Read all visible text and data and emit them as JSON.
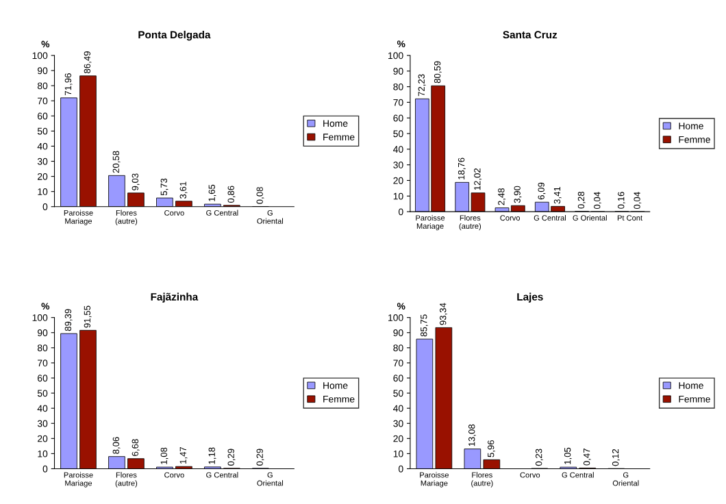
{
  "chart_data": [
    {
      "type": "bar",
      "title": "Ponta Delgada",
      "ylabel": "%",
      "categories": [
        "Paroisse\nMariage",
        "Flores\n(autre)",
        "Corvo",
        "G Central",
        "G\nOriental"
      ],
      "ylim": [
        0,
        100
      ],
      "yticks": [
        0,
        10,
        20,
        30,
        40,
        50,
        60,
        70,
        80,
        90,
        100
      ],
      "grid": false,
      "legend": "right",
      "series": [
        {
          "name": "Home",
          "color": "#9999ff",
          "values": [
            71.96,
            20.58,
            5.73,
            1.65,
            0.08
          ],
          "value_labels": [
            "71,96",
            "20,58",
            "5,73",
            "1,65",
            "0,08"
          ]
        },
        {
          "name": "Femme",
          "color": "#991100",
          "values": [
            86.49,
            9.03,
            3.61,
            0.86,
            null
          ],
          "value_labels": [
            "86,49",
            "9,03",
            "3,61",
            "0,86",
            null
          ]
        }
      ]
    },
    {
      "type": "bar",
      "title": "Santa Cruz",
      "ylabel": "%",
      "categories": [
        "Paroisse\nMariage",
        "Flores\n(autre)",
        "Corvo",
        "G Central",
        "G Oriental",
        "Pt Cont"
      ],
      "ylim": [
        0,
        100
      ],
      "yticks": [
        0,
        10,
        20,
        30,
        40,
        50,
        60,
        70,
        80,
        90,
        100
      ],
      "grid": false,
      "legend": "right",
      "series": [
        {
          "name": "Home",
          "color": "#9999ff",
          "values": [
            72.23,
            18.76,
            2.48,
            6.09,
            0.28,
            0.16
          ],
          "value_labels": [
            "72,23",
            "18,76",
            "2,48",
            "6,09",
            "0,28",
            "0,16"
          ]
        },
        {
          "name": "Femme",
          "color": "#991100",
          "values": [
            80.59,
            12.02,
            3.9,
            3.41,
            0.04,
            0.04
          ],
          "value_labels": [
            "80,59",
            "12,02",
            "3,90",
            "3,41",
            "0,04",
            "0,04"
          ]
        }
      ]
    },
    {
      "type": "bar",
      "title": "Fajãzinha",
      "ylabel": "%",
      "categories": [
        "Paroisse\nMariage",
        "Flores\n(autre)",
        "Corvo",
        "G Central",
        "G\nOriental"
      ],
      "ylim": [
        0,
        100
      ],
      "yticks": [
        0,
        10,
        20,
        30,
        40,
        50,
        60,
        70,
        80,
        90,
        100
      ],
      "grid": false,
      "legend": "right",
      "series": [
        {
          "name": "Home",
          "color": "#9999ff",
          "values": [
            89.39,
            8.06,
            1.08,
            1.18,
            0.29
          ],
          "value_labels": [
            "89,39",
            "8,06",
            "1,08",
            "1,18",
            "0,29"
          ]
        },
        {
          "name": "Femme",
          "color": "#991100",
          "values": [
            91.55,
            6.68,
            1.47,
            0.29,
            null
          ],
          "value_labels": [
            "91,55",
            "6,68",
            "1,47",
            "0,29",
            null
          ]
        }
      ]
    },
    {
      "type": "bar",
      "title": "Lajes",
      "ylabel": "%",
      "categories": [
        "Paroisse\nMariage",
        "Flores\n(autre)",
        "Corvo",
        "G Central",
        "G\nOriental"
      ],
      "ylim": [
        0,
        100
      ],
      "yticks": [
        0,
        10,
        20,
        30,
        40,
        50,
        60,
        70,
        80,
        90,
        100
      ],
      "grid": false,
      "legend": "right",
      "series": [
        {
          "name": "Home",
          "color": "#9999ff",
          "values": [
            85.75,
            13.08,
            null,
            1.05,
            0.12
          ],
          "value_labels": [
            "85,75",
            "13,08",
            null,
            "1,05",
            "0,12"
          ]
        },
        {
          "name": "Femme",
          "color": "#991100",
          "values": [
            93.34,
            5.96,
            0.23,
            0.47,
            null
          ],
          "value_labels": [
            "93,34",
            "5,96",
            "0,23",
            "0,47",
            null
          ]
        }
      ]
    }
  ]
}
